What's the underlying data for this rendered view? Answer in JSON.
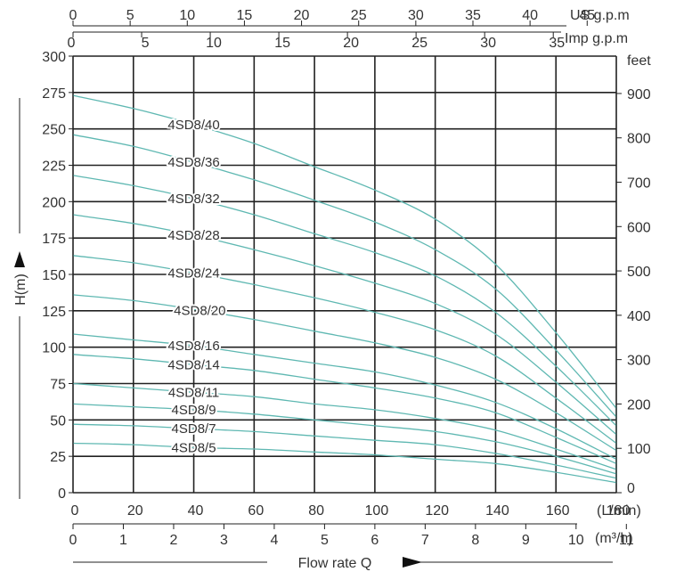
{
  "chart_data": {
    "type": "line",
    "title": "",
    "xlabel": "Flow rate Q",
    "ylabel": "H(m)",
    "xlim": [
      0,
      180
    ],
    "ylim": [
      0,
      300
    ],
    "grid": true,
    "curve_color": "#5fb8b2",
    "grid_color": "#222222",
    "x_ticks": [
      0,
      20,
      40,
      60,
      80,
      100,
      120,
      140,
      160,
      180
    ],
    "x_unit": "(L/min)",
    "y_ticks": [
      0,
      25,
      50,
      75,
      100,
      125,
      150,
      175,
      200,
      225,
      250,
      275,
      300
    ],
    "feet_axis": {
      "unit": "feet",
      "ticks": [
        0,
        100,
        200,
        300,
        400,
        500,
        600,
        700,
        800,
        900
      ]
    },
    "m3h_axis": {
      "unit": "(m³/h)",
      "ticks": [
        0,
        1,
        2,
        3,
        4,
        5,
        6,
        7,
        8,
        9,
        10,
        11
      ]
    },
    "usgpm_axis": {
      "unit": "US g.p.m",
      "ticks": [
        0,
        5,
        10,
        15,
        20,
        25,
        30,
        35,
        40,
        45
      ]
    },
    "impgpm_axis": {
      "unit": "Imp g.p.m",
      "ticks": [
        0,
        5,
        10,
        15,
        20,
        25,
        30,
        35
      ]
    },
    "series": [
      {
        "name": "4SD8/40",
        "x": [
          0,
          20,
          40,
          60,
          80,
          100,
          120,
          140,
          160,
          180
        ],
        "y": [
          273,
          264,
          253,
          240,
          224,
          208,
          188,
          157,
          110,
          58
        ]
      },
      {
        "name": "4SD8/36",
        "x": [
          0,
          20,
          40,
          60,
          80,
          100,
          120,
          140,
          160,
          180
        ],
        "y": [
          246,
          238,
          227,
          215,
          201,
          186,
          167,
          140,
          98,
          52
        ]
      },
      {
        "name": "4SD8/32",
        "x": [
          0,
          20,
          40,
          60,
          80,
          100,
          120,
          140,
          160,
          180
        ],
        "y": [
          218,
          211,
          202,
          191,
          178,
          165,
          149,
          124,
          87,
          46
        ]
      },
      {
        "name": "4SD8/28",
        "x": [
          0,
          20,
          40,
          60,
          80,
          100,
          120,
          140,
          160,
          180
        ],
        "y": [
          191,
          185,
          177,
          167,
          156,
          144,
          130,
          109,
          76,
          40
        ]
      },
      {
        "name": "4SD8/24",
        "x": [
          0,
          20,
          40,
          60,
          80,
          100,
          120,
          140,
          160,
          180
        ],
        "y": [
          163,
          158,
          151,
          143,
          134,
          124,
          112,
          94,
          65,
          34
        ]
      },
      {
        "name": "4SD8/20",
        "x": [
          0,
          20,
          40,
          60,
          80,
          100,
          120,
          140,
          160,
          180
        ],
        "y": [
          136,
          132,
          126,
          119,
          111,
          103,
          93,
          78,
          55,
          29
        ]
      },
      {
        "name": "4SD8/16",
        "x": [
          0,
          20,
          40,
          60,
          80,
          100,
          120,
          140,
          160,
          180
        ],
        "y": [
          109,
          105,
          101,
          95,
          89,
          83,
          74,
          62,
          44,
          23
        ]
      },
      {
        "name": "4SD8/14",
        "x": [
          0,
          20,
          40,
          60,
          80,
          100,
          120,
          140,
          160,
          180
        ],
        "y": [
          95,
          92,
          88,
          84,
          78,
          72,
          65,
          55,
          38,
          20
        ]
      },
      {
        "name": "4SD8/11",
        "x": [
          0,
          20,
          40,
          60,
          80,
          100,
          120,
          140,
          160,
          180
        ],
        "y": [
          75,
          72,
          69,
          66,
          61,
          57,
          51,
          43,
          30,
          16
        ]
      },
      {
        "name": "4SD8/9",
        "x": [
          0,
          20,
          40,
          60,
          80,
          100,
          120,
          140,
          160,
          180
        ],
        "y": [
          61,
          59,
          57,
          54,
          50,
          46,
          42,
          35,
          25,
          13
        ]
      },
      {
        "name": "4SD8/7",
        "x": [
          0,
          20,
          40,
          60,
          80,
          100,
          120,
          140,
          160,
          180
        ],
        "y": [
          47,
          46,
          44,
          42,
          39,
          36,
          33,
          27,
          19,
          10
        ]
      },
      {
        "name": "4SD8/5",
        "x": [
          0,
          20,
          40,
          60,
          80,
          100,
          120,
          140,
          160,
          180
        ],
        "y": [
          34,
          33,
          31,
          30,
          28,
          26,
          23,
          20,
          14,
          7
        ]
      }
    ],
    "label_flow": [
      40,
      40,
      40,
      40,
      40,
      42,
      40,
      40,
      40,
      40,
      40,
      40
    ]
  }
}
